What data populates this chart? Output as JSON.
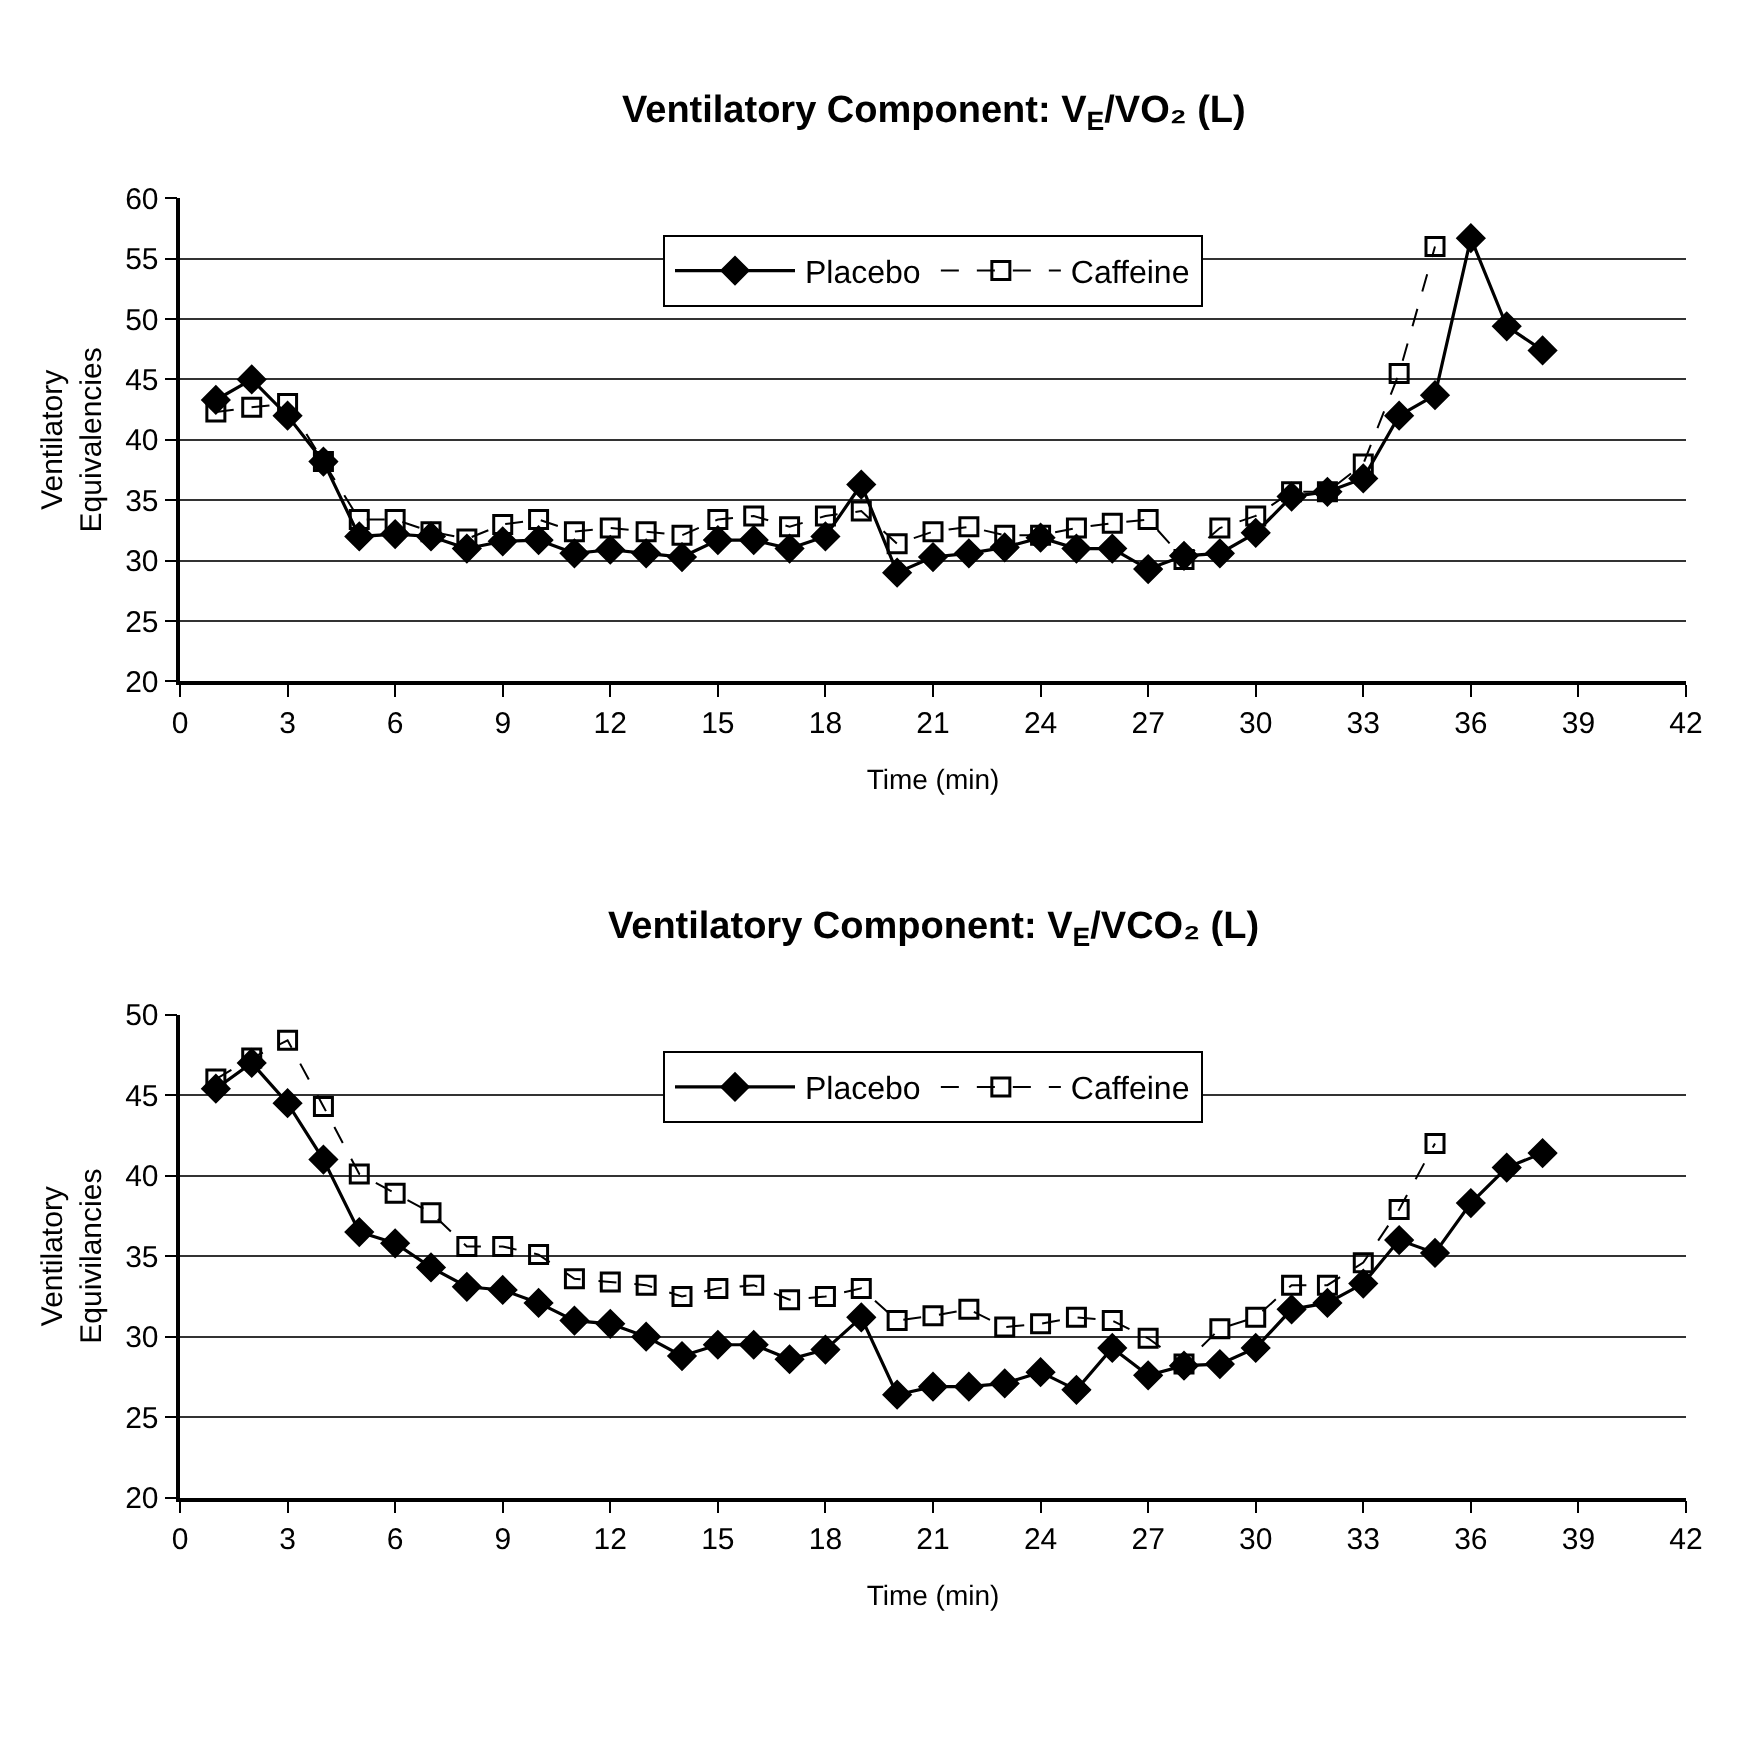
{
  "chart_data": [
    {
      "type": "line",
      "title": "Ventilatory Component: V$_{E}$/VO₂ (L)",
      "xlabel": "Time (min)",
      "ylabel": "Ventilatory Equivalencies",
      "xlim": [
        0,
        42
      ],
      "xticks": [
        0,
        3,
        6,
        9,
        12,
        15,
        18,
        21,
        24,
        27,
        30,
        33,
        36,
        39,
        42
      ],
      "ylim": [
        20,
        60
      ],
      "yticks": [
        20,
        25,
        30,
        35,
        40,
        45,
        50,
        55,
        60
      ],
      "grid": "y",
      "legend": "top",
      "series": [
        {
          "name": "Placebo",
          "color": "#000000",
          "marker": "diamond",
          "line_style": "solid",
          "x": [
            1,
            2,
            3,
            4,
            5,
            6,
            7,
            8,
            9,
            10,
            11,
            12,
            13,
            14,
            15,
            16,
            17,
            18,
            19,
            20,
            21,
            22,
            23,
            24,
            25,
            26,
            27,
            28,
            29,
            30,
            31,
            32,
            33,
            34,
            35,
            36,
            37,
            38
          ],
          "values": [
            43.3,
            45,
            42,
            38.2,
            32,
            32.2,
            32,
            31,
            31.6,
            31.7,
            30.6,
            30.9,
            30.6,
            30.3,
            31.7,
            31.7,
            31,
            32,
            36.3,
            29,
            30.3,
            30.6,
            31.1,
            31.9,
            31,
            31,
            29.3,
            30.4,
            30.6,
            32.3,
            35.3,
            35.7,
            36.8,
            42,
            43.7,
            56.7,
            49.4,
            47.4
          ]
        },
        {
          "name": "Caffeine",
          "color": "#000000",
          "marker": "square",
          "line_style": "dashed",
          "x": [
            1,
            2,
            3,
            4,
            5,
            6,
            7,
            8,
            9,
            10,
            11,
            12,
            13,
            14,
            15,
            16,
            17,
            18,
            19,
            20,
            21,
            22,
            23,
            24,
            25,
            26,
            27,
            28,
            29,
            30,
            31,
            32,
            33,
            34,
            35
          ],
          "values": [
            42.3,
            42.7,
            43,
            38.2,
            33.4,
            33.4,
            32.4,
            31.8,
            33,
            33.4,
            32.4,
            32.7,
            32.4,
            32.1,
            33.4,
            33.7,
            32.8,
            33.7,
            34.1,
            31.4,
            32.4,
            32.8,
            32.1,
            32.1,
            32.7,
            33.1,
            33.4,
            30.1,
            32.7,
            33.7,
            35.7,
            35.7,
            38,
            45.5,
            56
          ]
        }
      ]
    },
    {
      "type": "line",
      "title": "Ventilatory Component: V$_{E}$/VCO₂ (L)",
      "xlabel": "Time (min)",
      "ylabel": "Ventilatory Equivilancies",
      "xlim": [
        0,
        42
      ],
      "xticks": [
        0,
        3,
        6,
        9,
        12,
        15,
        18,
        21,
        24,
        27,
        30,
        33,
        36,
        39,
        42
      ],
      "ylim": [
        20,
        50
      ],
      "yticks": [
        20,
        25,
        30,
        35,
        40,
        45,
        50
      ],
      "grid": "y",
      "legend": "top",
      "series": [
        {
          "name": "Placebo",
          "color": "#000000",
          "marker": "diamond",
          "line_style": "solid",
          "x": [
            1,
            2,
            3,
            4,
            5,
            6,
            7,
            8,
            9,
            10,
            11,
            12,
            13,
            14,
            15,
            16,
            17,
            18,
            19,
            20,
            21,
            22,
            23,
            24,
            25,
            26,
            27,
            28,
            29,
            30,
            31,
            32,
            33,
            34,
            35,
            36,
            37,
            38
          ],
          "values": [
            45.4,
            47,
            44.5,
            41,
            36.5,
            35.8,
            34.3,
            33.1,
            32.9,
            32.1,
            31,
            30.8,
            30,
            28.8,
            29.5,
            29.5,
            28.6,
            29.2,
            31.2,
            26.4,
            26.9,
            26.9,
            27.1,
            27.8,
            26.7,
            29.3,
            27.6,
            28.2,
            28.3,
            29.3,
            31.7,
            32.1,
            33.3,
            36,
            35.2,
            38.3,
            40.5,
            41.4
          ]
        },
        {
          "name": "Caffeine",
          "color": "#000000",
          "marker": "square",
          "line_style": "dashed",
          "x": [
            1,
            2,
            3,
            4,
            5,
            6,
            7,
            8,
            9,
            10,
            11,
            12,
            13,
            14,
            15,
            16,
            17,
            18,
            19,
            20,
            21,
            22,
            23,
            24,
            25,
            26,
            27,
            28,
            29,
            30,
            31,
            32,
            33,
            34,
            35
          ],
          "values": [
            46,
            47.3,
            48.4,
            44.3,
            40.1,
            38.9,
            37.7,
            35.6,
            35.6,
            35.1,
            33.6,
            33.4,
            33.2,
            32.5,
            33,
            33.2,
            32.3,
            32.5,
            33,
            31,
            31.3,
            31.7,
            30.6,
            30.8,
            31.2,
            31,
            29.9,
            28.3,
            30.5,
            31.2,
            33.2,
            33.2,
            34.6,
            37.9,
            42
          ]
        }
      ]
    }
  ]
}
